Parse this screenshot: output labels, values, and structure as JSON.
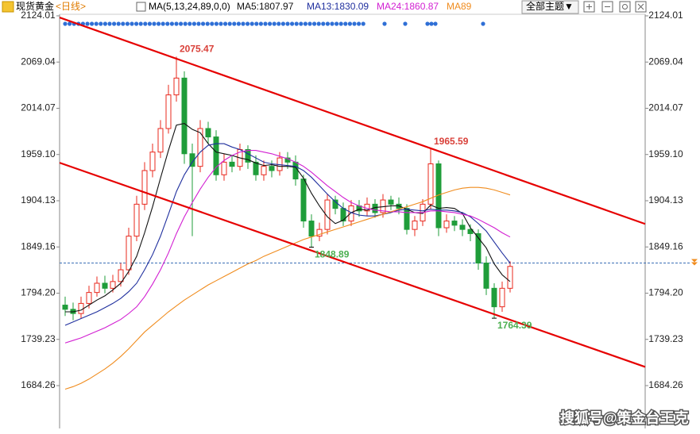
{
  "header": {
    "symbol": "现货黄金",
    "period": "<日线>",
    "ma_params": "MA(5,13,24,89,0,0)"
  },
  "toolbar": {
    "button": "全部主题▼"
  },
  "watermark": "搜狐号@策金台王克",
  "chart_data": {
    "type": "candlestick",
    "open": [
      1780,
      1775,
      1770,
      1782,
      1795,
      1806,
      1800,
      1808,
      1822,
      1862,
      1900,
      1940,
      1962,
      1990,
      2030,
      2050,
      1960,
      1945,
      1990,
      1980,
      1935,
      1950,
      1945,
      1965,
      1950,
      1935,
      1945,
      1940,
      1955,
      1950,
      1930,
      1880,
      1862,
      1870,
      1905,
      1895,
      1880,
      1898,
      1892,
      1900,
      1890,
      1905,
      1900,
      1895,
      1870,
      1880,
      1900,
      1948,
      1872,
      1880,
      1875,
      1870,
      1865,
      1830,
      1800,
      1778,
      1800
    ],
    "high": [
      1790,
      1783,
      1790,
      1803,
      1814,
      1815,
      1816,
      1830,
      1872,
      1910,
      1950,
      1972,
      2000,
      2042,
      2075.47,
      2058,
      1972,
      2000,
      1998,
      1988,
      1960,
      1958,
      1972,
      1970,
      1958,
      1952,
      1952,
      1962,
      1962,
      1958,
      1935,
      1888,
      1878,
      1912,
      1910,
      1902,
      1905,
      1905,
      1908,
      1906,
      1912,
      1910,
      1908,
      1900,
      1886,
      1906,
      1965.59,
      1952,
      1888,
      1886,
      1882,
      1876,
      1870,
      1838,
      1806,
      1808,
      1832
    ],
    "low": [
      1767,
      1762,
      1764,
      1776,
      1790,
      1794,
      1795,
      1802,
      1816,
      1856,
      1893,
      1932,
      1955,
      1984,
      2022,
      1948,
      1862,
      1938,
      1972,
      1928,
      1928,
      1938,
      1940,
      1942,
      1928,
      1928,
      1932,
      1934,
      1942,
      1922,
      1872,
      1848.89,
      1856,
      1864,
      1888,
      1874,
      1874,
      1885,
      1886,
      1884,
      1884,
      1893,
      1888,
      1864,
      1862,
      1874,
      1894,
      1862,
      1866,
      1868,
      1862,
      1856,
      1822,
      1792,
      1764.39,
      1772,
      1795
    ],
    "close": [
      1775,
      1770,
      1782,
      1795,
      1806,
      1800,
      1808,
      1822,
      1862,
      1900,
      1940,
      1962,
      1990,
      2030,
      2050,
      1960,
      1945,
      1990,
      1980,
      1935,
      1950,
      1945,
      1965,
      1950,
      1935,
      1945,
      1940,
      1955,
      1950,
      1930,
      1880,
      1862,
      1870,
      1905,
      1895,
      1880,
      1898,
      1892,
      1900,
      1890,
      1905,
      1900,
      1895,
      1870,
      1880,
      1900,
      1948,
      1872,
      1880,
      1875,
      1870,
      1865,
      1830,
      1800,
      1778,
      1800,
      1826
    ],
    "up_color": "#e8281e",
    "down_color": "#1f9d3a",
    "series": [
      {
        "name": "MA5:1807.97",
        "color": "#111111",
        "values": [
          1772,
          1772,
          1774,
          1780,
          1786,
          1791,
          1798,
          1806,
          1820,
          1838,
          1866,
          1897,
          1931,
          1964,
          1994,
          1996,
          1989,
          1985,
          1972,
          1962,
          1960,
          1958,
          1955,
          1953,
          1949,
          1946,
          1947,
          1945,
          1945,
          1944,
          1931,
          1913,
          1898,
          1885,
          1877,
          1881,
          1890,
          1894,
          1893,
          1896,
          1897,
          1898,
          1898,
          1894,
          1890,
          1889,
          1899,
          1895,
          1896,
          1895,
          1889,
          1872,
          1860,
          1848,
          1829,
          1816,
          1808
        ]
      },
      {
        "name": "MA13:1830.09",
        "color": "#1f2f9e",
        "values": [
          1756,
          1760,
          1764,
          1768,
          1772,
          1777,
          1782,
          1788,
          1796,
          1806,
          1822,
          1840,
          1862,
          1888,
          1915,
          1935,
          1950,
          1962,
          1970,
          1972,
          1972,
          1968,
          1965,
          1960,
          1955,
          1950,
          1948,
          1947,
          1946,
          1945,
          1940,
          1932,
          1922,
          1912,
          1903,
          1895,
          1890,
          1887,
          1886,
          1886,
          1888,
          1890,
          1893,
          1894,
          1893,
          1892,
          1894,
          1893,
          1893,
          1892,
          1890,
          1885,
          1877,
          1868,
          1855,
          1842,
          1830
        ]
      },
      {
        "name": "MA24:1860.87",
        "color": "#d21fd2",
        "values": [
          1735,
          1738,
          1741,
          1745,
          1749,
          1753,
          1758,
          1763,
          1770,
          1778,
          1790,
          1805,
          1822,
          1842,
          1865,
          1885,
          1902,
          1918,
          1932,
          1944,
          1952,
          1958,
          1962,
          1964,
          1964,
          1962,
          1960,
          1957,
          1954,
          1950,
          1945,
          1938,
          1930,
          1922,
          1915,
          1908,
          1902,
          1898,
          1895,
          1893,
          1892,
          1891,
          1891,
          1890,
          1890,
          1890,
          1892,
          1892,
          1891,
          1890,
          1888,
          1886,
          1882,
          1877,
          1872,
          1866,
          1861
        ]
      },
      {
        "name": "MA89",
        "color": "#f08c1e",
        "values": [
          1680,
          1683,
          1687,
          1692,
          1698,
          1704,
          1711,
          1719,
          1728,
          1738,
          1748,
          1756,
          1764,
          1772,
          1779,
          1786,
          1792,
          1798,
          1804,
          1809,
          1814,
          1819,
          1824,
          1829,
          1833,
          1838,
          1842,
          1846,
          1850,
          1854,
          1858,
          1861,
          1864,
          1867,
          1870,
          1873,
          1876,
          1879,
          1882,
          1885,
          1888,
          1891,
          1894,
          1897,
          1900,
          1903,
          1907,
          1911,
          1914,
          1917,
          1919,
          1920,
          1920,
          1919,
          1917,
          1914,
          1911
        ]
      }
    ],
    "ylim": [
      1633.3,
      2135.3
    ],
    "yticks": [
      1684.26,
      1739.23,
      {
        "value": 1794.2,
        "label": "1794.20"
      },
      1849.16,
      1904.13,
      {
        "value": 1959.1,
        "label": "1959.10"
      },
      2014.07,
      2069.04,
      2124.01
    ],
    "trendlines": [
      {
        "color": "#e60000",
        "x": [
          -0.7,
          73
        ],
        "y": [
          2122,
          1876.5
        ]
      },
      {
        "color": "#e60000",
        "x": [
          -0.7,
          73
        ],
        "y": [
          1949.3,
          1706.5
        ]
      }
    ],
    "price_line": {
      "value": 1830,
      "color": "#3b6fb6"
    },
    "annotations": [
      {
        "value": 2075.47,
        "index": 14,
        "color": "#d9413a",
        "side": "above"
      },
      {
        "value": 1965.59,
        "index": 46,
        "color": "#d9413a",
        "side": "above"
      },
      {
        "value": 1848.89,
        "index": 31,
        "color": "#4caf50",
        "side": "below"
      },
      {
        "value": 1764.39,
        "index": 54,
        "color": "#4caf50",
        "side": "below"
      }
    ]
  }
}
